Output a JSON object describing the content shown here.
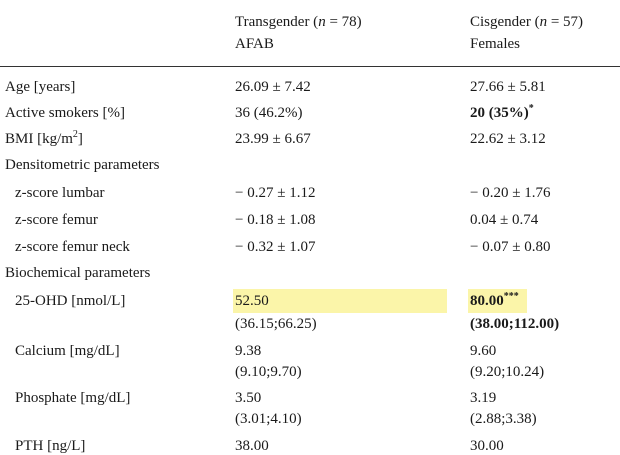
{
  "header": {
    "col2_line1_prefix": "Transgender (",
    "col2_n": "n",
    "col2_eq": " = 78)",
    "col2_line2": "AFAB",
    "col3_line1_prefix": "Cisgender (",
    "col3_n": "n",
    "col3_eq": " = 57)",
    "col3_line2": "Females"
  },
  "rows": {
    "age": {
      "label": "Age [years]",
      "trans": "26.09 ± 7.42",
      "cis": "27.66 ± 5.81"
    },
    "smokers": {
      "label": "Active smokers [%]",
      "trans": "36 (46.2%)",
      "cis": "20 (35%)",
      "cis_sup": "*"
    },
    "bmi": {
      "label_prefix": "BMI [kg/m",
      "label_sup": "2",
      "label_suffix": "]",
      "trans": "23.99 ± 6.67",
      "cis": "22.62 ± 3.12"
    },
    "densito": {
      "label": "Densitometric parameters"
    },
    "lumbar": {
      "label": "z-score lumbar",
      "trans": "− 0.27 ± 1.12",
      "cis": "− 0.20 ± 1.76"
    },
    "femur": {
      "label": "z-score femur",
      "trans": "− 0.18 ± 1.08",
      "cis": "0.04 ± 0.74"
    },
    "femur_neck": {
      "label": "z-score femur neck",
      "trans": "− 0.32 ± 1.07",
      "cis": "− 0.07 ± 0.80"
    },
    "biochem": {
      "label": "Biochemical parameters"
    },
    "ohd": {
      "label": "25-OHD [nmol/L]",
      "trans": "52.50",
      "trans_range": "(36.15;66.25)",
      "cis": "80.00",
      "cis_sup": "***",
      "cis_range": "(38.00;112.00)"
    },
    "calcium": {
      "label": "Calcium [mg/dL]",
      "trans": "9.38",
      "trans_range": "(9.10;9.70)",
      "cis": "9.60",
      "cis_range": "(9.20;10.24)"
    },
    "phosphate": {
      "label": "Phosphate [mg/dL]",
      "trans": "3.50",
      "trans_range": "(3.01;4.10)",
      "cis": "3.19",
      "cis_range": "(2.88;3.38)"
    },
    "pth": {
      "label": "PTH [ng/L]",
      "trans": "38.00",
      "cis": "30.00"
    }
  },
  "colors": {
    "highlight": "#fbf5a9",
    "text": "#1a1a1a",
    "rule": "#333333"
  }
}
